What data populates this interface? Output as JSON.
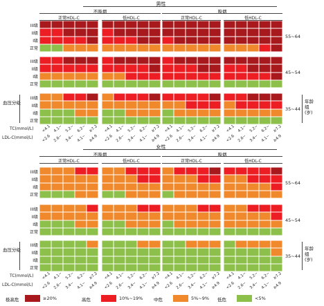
{
  "chart_data": {
    "type": "heatmap",
    "title": "",
    "colors": {
      "very_high": "#a8191d",
      "high": "#ec1d23",
      "mid": "#f0892c",
      "low": "#8cc04a"
    },
    "legend": [
      {
        "key": "very_high",
        "name": "极高危",
        "range": "≥20%"
      },
      {
        "key": "high",
        "name": "高危",
        "range": "10%~19%"
      },
      {
        "key": "mid",
        "name": "中危",
        "range": "5%~9%"
      },
      {
        "key": "low",
        "name": "低危",
        "range": "<5%"
      }
    ],
    "smoking_labels": [
      "不吸烟",
      "吸烟"
    ],
    "hdl_labels": [
      "正常HDL-C",
      "低HDL-C"
    ],
    "bp_rows": [
      "III级",
      "II级",
      "I级",
      "正常"
    ],
    "age_groups": [
      "55~64",
      "45~54",
      "35~44"
    ],
    "age_axis_label": "年龄组(岁)",
    "bp_axis_label": "血压分级",
    "tc_axis_label": "TC(mmol/L)",
    "ldl_axis_label": "LDL-C(mmol/L)",
    "tc_ticks": [
      "<4.1",
      "4.1~",
      "5.2~",
      "6.2~",
      "≥7.2"
    ],
    "ldl_ticks": [
      "<2.6",
      "2.6~",
      "3.4~",
      "4.1~",
      "≥4.9"
    ],
    "panels": [
      {
        "sex": "男性",
        "groups": [
          {
            "age": "55~64",
            "blocks": [
              [
                [
                  4,
                  4,
                  4,
                  4,
                  4
                ],
                [
                  3,
                  3,
                  4,
                  4,
                  4
                ],
                [
                  3,
                  3,
                  3,
                  3,
                  4
                ],
                [
                  1,
                  1,
                  2,
                  2,
                  2
                ]
              ],
              [
                [
                  4,
                  4,
                  4,
                  4,
                  4
                ],
                [
                  3,
                  4,
                  4,
                  4,
                  4
                ],
                [
                  3,
                  3,
                  3,
                  4,
                  4
                ],
                [
                  2,
                  2,
                  2,
                  2,
                  2
                ]
              ],
              [
                [
                  4,
                  4,
                  4,
                  4,
                  4
                ],
                [
                  4,
                  4,
                  4,
                  4,
                  4
                ],
                [
                  3,
                  4,
                  4,
                  4,
                  4
                ],
                [
                  2,
                  2,
                  2,
                  2,
                  2
                ]
              ],
              [
                [
                  4,
                  4,
                  4,
                  4,
                  4
                ],
                [
                  4,
                  4,
                  4,
                  4,
                  4
                ],
                [
                  4,
                  4,
                  4,
                  4,
                  4
                ],
                [
                  2,
                  2,
                  2,
                  3,
                  4
                ]
              ]
            ]
          },
          {
            "age": "45~54",
            "blocks": [
              [
                [
                  3,
                  3,
                  4,
                  4,
                  4
                ],
                [
                  3,
                  3,
                  3,
                  3,
                  3
                ],
                [
                  2,
                  2,
                  2,
                  2,
                  2
                ],
                [
                  1,
                  1,
                  1,
                  1,
                  1
                ]
              ],
              [
                [
                  3,
                  4,
                  4,
                  4,
                  4
                ],
                [
                  3,
                  3,
                  3,
                  3,
                  4
                ],
                [
                  2,
                  2,
                  3,
                  3,
                  3
                ],
                [
                  1,
                  1,
                  1,
                  1,
                  1
                ]
              ],
              [
                [
                  3,
                  4,
                  4,
                  4,
                  4
                ],
                [
                  3,
                  3,
                  3,
                  4,
                  4
                ],
                [
                  3,
                  3,
                  3,
                  3,
                  3
                ],
                [
                  1,
                  1,
                  1,
                  1,
                  1
                ]
              ],
              [
                [
                  4,
                  4,
                  4,
                  4,
                  4
                ],
                [
                  3,
                  3,
                  4,
                  4,
                  4
                ],
                [
                  3,
                  3,
                  3,
                  3,
                  4
                ],
                [
                  1,
                  1,
                  1,
                  1,
                  1
                ]
              ]
            ]
          },
          {
            "age": "35~44",
            "blocks": [
              [
                [
                  2,
                  2,
                  3,
                  3,
                  4
                ],
                [
                  2,
                  2,
                  2,
                  2,
                  2
                ],
                [
                  1,
                  1,
                  1,
                  2,
                  2
                ],
                [
                  1,
                  1,
                  1,
                  1,
                  1
                ]
              ],
              [
                [
                  2,
                  3,
                  3,
                  3,
                  4
                ],
                [
                  2,
                  2,
                  2,
                  2,
                  2
                ],
                [
                  1,
                  1,
                  2,
                  2,
                  2
                ],
                [
                  1,
                  1,
                  1,
                  1,
                  1
                ]
              ],
              [
                [
                  3,
                  3,
                  3,
                  3,
                  4
                ],
                [
                  2,
                  2,
                  3,
                  3,
                  3
                ],
                [
                  1,
                  2,
                  2,
                  2,
                  2
                ],
                [
                  1,
                  1,
                  1,
                  1,
                  1
                ]
              ],
              [
                [
                  3,
                  3,
                  4,
                  4,
                  4
                ],
                [
                  2,
                  3,
                  3,
                  3,
                  3
                ],
                [
                  2,
                  2,
                  2,
                  2,
                  2
                ],
                [
                  1,
                  1,
                  1,
                  1,
                  1
                ]
              ]
            ]
          }
        ]
      },
      {
        "sex": "女性",
        "groups": [
          {
            "age": "55~64",
            "blocks": [
              [
                [
                  2,
                  2,
                  2,
                  3,
                  3
                ],
                [
                  2,
                  2,
                  2,
                  2,
                  2
                ],
                [
                  2,
                  2,
                  2,
                  2,
                  2
                ],
                [
                  1,
                  1,
                  1,
                  2,
                  2
                ]
              ],
              [
                [
                  2,
                  2,
                  3,
                  3,
                  3
                ],
                [
                  2,
                  2,
                  2,
                  3,
                  3
                ],
                [
                  2,
                  2,
                  2,
                  2,
                  2
                ],
                [
                  1,
                  1,
                  2,
                  2,
                  2
                ]
              ],
              [
                [
                  2,
                  3,
                  3,
                  3,
                  4
                ],
                [
                  2,
                  2,
                  2,
                  3,
                  3
                ],
                [
                  2,
                  2,
                  2,
                  2,
                  2
                ],
                [
                  1,
                  2,
                  2,
                  2,
                  2
                ]
              ],
              [
                [
                  3,
                  3,
                  3,
                  3,
                  4
                ],
                [
                  2,
                  2,
                  3,
                  3,
                  3
                ],
                [
                  2,
                  2,
                  2,
                  2,
                  3
                ],
                [
                  2,
                  2,
                  2,
                  2,
                  2
                ]
              ]
            ]
          },
          {
            "age": "45~54",
            "blocks": [
              [
                [
                  2,
                  2,
                  2,
                  2,
                  3
                ],
                [
                  2,
                  2,
                  2,
                  2,
                  2
                ],
                [
                  1,
                  1,
                  1,
                  2,
                  2
                ],
                [
                  1,
                  1,
                  1,
                  1,
                  1
                ]
              ],
              [
                [
                  2,
                  2,
                  2,
                  3,
                  3
                ],
                [
                  2,
                  2,
                  2,
                  2,
                  2
                ],
                [
                  1,
                  1,
                  2,
                  2,
                  2
                ],
                [
                  1,
                  1,
                  1,
                  1,
                  1
                ]
              ],
              [
                [
                  2,
                  2,
                  2,
                  3,
                  3
                ],
                [
                  2,
                  2,
                  2,
                  2,
                  2
                ],
                [
                  1,
                  2,
                  2,
                  2,
                  2
                ],
                [
                  1,
                  1,
                  1,
                  1,
                  1
                ]
              ],
              [
                [
                  2,
                  2,
                  3,
                  3,
                  3
                ],
                [
                  2,
                  2,
                  2,
                  2,
                  3
                ],
                [
                  2,
                  2,
                  2,
                  2,
                  2
                ],
                [
                  1,
                  1,
                  1,
                  1,
                  1
                ]
              ]
            ]
          },
          {
            "age": "35~44",
            "blocks": [
              [
                [
                  1,
                  1,
                  1,
                  1,
                  2
                ],
                [
                  1,
                  1,
                  1,
                  1,
                  1
                ],
                [
                  1,
                  1,
                  1,
                  1,
                  1
                ],
                [
                  1,
                  1,
                  1,
                  1,
                  1
                ]
              ],
              [
                [
                  1,
                  1,
                  1,
                  2,
                  2
                ],
                [
                  1,
                  1,
                  1,
                  1,
                  1
                ],
                [
                  1,
                  1,
                  1,
                  1,
                  1
                ],
                [
                  1,
                  1,
                  1,
                  1,
                  1
                ]
              ],
              [
                [
                  1,
                  1,
                  2,
                  2,
                  2
                ],
                [
                  1,
                  1,
                  1,
                  1,
                  1
                ],
                [
                  1,
                  1,
                  1,
                  1,
                  1
                ],
                [
                  1,
                  1,
                  1,
                  1,
                  1
                ]
              ],
              [
                [
                  1,
                  2,
                  2,
                  2,
                  2
                ],
                [
                  1,
                  1,
                  1,
                  1,
                  2
                ],
                [
                  1,
                  1,
                  1,
                  1,
                  1
                ],
                [
                  1,
                  1,
                  1,
                  1,
                  1
                ]
              ]
            ]
          }
        ]
      }
    ]
  }
}
